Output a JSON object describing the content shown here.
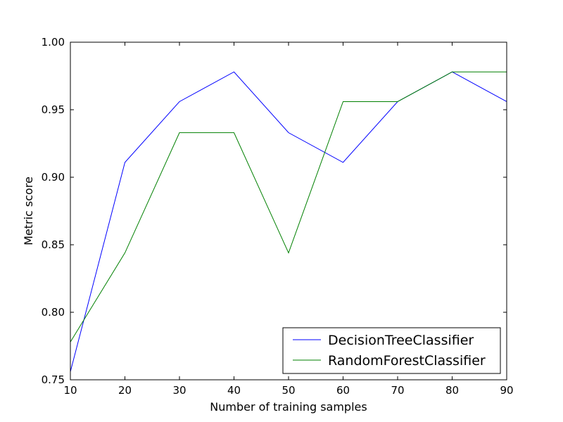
{
  "chart_data": {
    "type": "line",
    "title": "",
    "xlabel": "Number of training samples",
    "ylabel": "Metric score",
    "x": [
      10,
      20,
      30,
      40,
      50,
      60,
      70,
      80,
      90
    ],
    "xlim": [
      10,
      90
    ],
    "ylim": [
      0.75,
      1.0
    ],
    "x_ticks": [
      "10",
      "20",
      "30",
      "40",
      "50",
      "60",
      "70",
      "80",
      "90"
    ],
    "y_ticks": [
      "0.75",
      "0.80",
      "0.85",
      "0.90",
      "0.95",
      "1.00"
    ],
    "grid": false,
    "legend_position": "lower-right",
    "series": [
      {
        "name": "DecisionTreeClassifier",
        "color": "#0000ff",
        "values": [
          0.756,
          0.911,
          0.956,
          0.978,
          0.933,
          0.911,
          0.956,
          0.978,
          0.956
        ]
      },
      {
        "name": "RandomForestClassifier",
        "color": "#008000",
        "values": [
          0.778,
          0.844,
          0.933,
          0.933,
          0.844,
          0.956,
          0.956,
          0.978,
          0.978
        ]
      }
    ]
  }
}
